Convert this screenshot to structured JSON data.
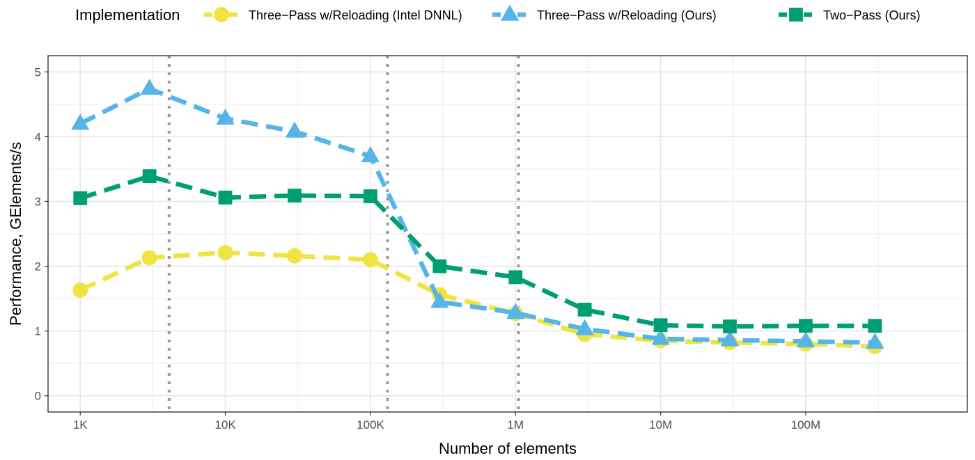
{
  "chart_data": {
    "type": "line",
    "xlabel": "Number of elements",
    "ylabel": "Performance, GElements/s",
    "xscale": "log10",
    "xlim": [
      600,
      1300000000
    ],
    "ylim": [
      -0.25,
      5.25
    ],
    "x_ticks": [
      {
        "value": 1000,
        "label": "1K"
      },
      {
        "value": 10000,
        "label": "10K"
      },
      {
        "value": 100000,
        "label": "100K"
      },
      {
        "value": 1000000,
        "label": "1M"
      },
      {
        "value": 10000000,
        "label": "10M"
      },
      {
        "value": 100000000,
        "label": "100M"
      }
    ],
    "y_ticks": [
      {
        "value": 0,
        "label": "0"
      },
      {
        "value": 1,
        "label": "1"
      },
      {
        "value": 2,
        "label": "2"
      },
      {
        "value": 3,
        "label": "3"
      },
      {
        "value": 4,
        "label": "4"
      },
      {
        "value": 5,
        "label": "5"
      }
    ],
    "vlines": [
      4096,
      131072,
      1048576
    ],
    "grid": true,
    "legend": {
      "title": "Implementation",
      "position": "top"
    },
    "x": [
      1000,
      3000,
      10000,
      30000,
      100000,
      300000,
      1000000,
      3000000,
      10000000,
      30000000,
      100000000,
      300000000
    ],
    "series": [
      {
        "name": "Three−Pass w/Reloading (Intel DNNL)",
        "color": "#f0e442",
        "marker": "circle",
        "values": [
          1.63,
          2.13,
          2.21,
          2.16,
          2.1,
          1.56,
          1.27,
          0.95,
          0.85,
          0.82,
          0.8,
          0.76
        ]
      },
      {
        "name": "Three−Pass w/Reloading (Ours)",
        "color": "#56b4e9",
        "marker": "triangle",
        "values": [
          4.2,
          4.74,
          4.28,
          4.08,
          3.7,
          1.45,
          1.28,
          1.03,
          0.88,
          0.86,
          0.84,
          0.82
        ]
      },
      {
        "name": "Two−Pass (Ours)",
        "color": "#009e73",
        "marker": "square",
        "values": [
          3.05,
          3.39,
          3.06,
          3.09,
          3.08,
          2.0,
          1.83,
          1.33,
          1.09,
          1.07,
          1.08,
          1.08
        ]
      }
    ]
  }
}
